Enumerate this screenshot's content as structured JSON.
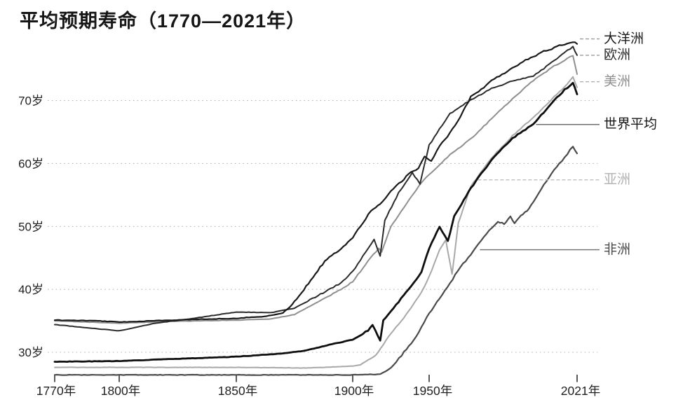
{
  "title": "平均预期寿命（1770—2021年）",
  "colors": {
    "background": "#ffffff",
    "grid": "#b5b5b5",
    "tick": "#2e2e2e",
    "axis_text": "#1f1f1f"
  },
  "chart_data": {
    "type": "line",
    "title": "平均预期寿命（1770—2021年）",
    "xlabel": "",
    "ylabel": "",
    "x_axis": {
      "ticks": [
        1770,
        1800,
        1850,
        1900,
        1950,
        2021
      ],
      "tick_labels": [
        "1770年",
        "1800年",
        "1850年",
        "1900年",
        "1950年",
        "2021年"
      ]
    },
    "y_axis": {
      "ticks": [
        30,
        40,
        50,
        60,
        70
      ],
      "tick_labels": [
        "30岁",
        "40岁",
        "50岁",
        "60岁",
        "70岁"
      ],
      "range": [
        26,
        80
      ]
    },
    "grid": "horizontal-dotted",
    "legend_position": "right-of-lines",
    "series": [
      {
        "name": "大洋洲",
        "color": "#1a1a1a",
        "points": [
          [
            1770,
            35.1
          ],
          [
            1790,
            35.0
          ],
          [
            1800,
            34.8
          ],
          [
            1815,
            35.0
          ],
          [
            1830,
            35.2
          ],
          [
            1850,
            35.4
          ],
          [
            1862,
            35.7
          ],
          [
            1870,
            36.2
          ],
          [
            1875,
            38.0
          ],
          [
            1880,
            40.5
          ],
          [
            1888,
            44.5
          ],
          [
            1895,
            46.5
          ],
          [
            1900,
            48.3
          ],
          [
            1905,
            50.0
          ],
          [
            1912,
            52.5
          ],
          [
            1918,
            53.5
          ],
          [
            1925,
            55.5
          ],
          [
            1932,
            57.2
          ],
          [
            1938,
            58.6
          ],
          [
            1943,
            59.2
          ],
          [
            1947,
            61.2
          ],
          [
            1951,
            60.4
          ],
          [
            1955,
            62.8
          ],
          [
            1960,
            64.8
          ],
          [
            1965,
            67.5
          ],
          [
            1970,
            70.6
          ],
          [
            1975,
            71.8
          ],
          [
            1980,
            73.2
          ],
          [
            1985,
            74.2
          ],
          [
            1990,
            75.2
          ],
          [
            1995,
            76.2
          ],
          [
            2000,
            77.0
          ],
          [
            2005,
            77.8
          ],
          [
            2010,
            78.4
          ],
          [
            2015,
            79.0
          ],
          [
            2019,
            79.4
          ],
          [
            2021,
            79.0
          ]
        ]
      },
      {
        "name": "欧洲",
        "color": "#2b2b2b",
        "points": [
          [
            1770,
            34.4
          ],
          [
            1785,
            33.9
          ],
          [
            1800,
            33.4
          ],
          [
            1815,
            34.6
          ],
          [
            1830,
            35.3
          ],
          [
            1850,
            36.4
          ],
          [
            1865,
            36.3
          ],
          [
            1875,
            37.0
          ],
          [
            1885,
            39.0
          ],
          [
            1895,
            41.0
          ],
          [
            1900,
            42.8
          ],
          [
            1910,
            46.5
          ],
          [
            1914,
            48.0
          ],
          [
            1918,
            45.2
          ],
          [
            1921,
            51.0
          ],
          [
            1930,
            55.3
          ],
          [
            1939,
            58.5
          ],
          [
            1944,
            56.8
          ],
          [
            1950,
            62.9
          ],
          [
            1955,
            65.5
          ],
          [
            1960,
            67.9
          ],
          [
            1970,
            70.1
          ],
          [
            1980,
            71.9
          ],
          [
            1990,
            73.1
          ],
          [
            2000,
            73.9
          ],
          [
            2005,
            75.1
          ],
          [
            2010,
            76.4
          ],
          [
            2015,
            77.6
          ],
          [
            2019,
            78.6
          ],
          [
            2021,
            77.2
          ]
        ]
      },
      {
        "name": "美洲",
        "color": "#8f8f8f",
        "points": [
          [
            1770,
            35.0
          ],
          [
            1800,
            34.6
          ],
          [
            1820,
            34.9
          ],
          [
            1850,
            35.1
          ],
          [
            1865,
            35.3
          ],
          [
            1875,
            36.0
          ],
          [
            1885,
            38.0
          ],
          [
            1895,
            40.0
          ],
          [
            1900,
            41.2
          ],
          [
            1910,
            44.5
          ],
          [
            1917,
            46.5
          ],
          [
            1919,
            46.0
          ],
          [
            1925,
            50.0
          ],
          [
            1935,
            53.5
          ],
          [
            1945,
            57.0
          ],
          [
            1950,
            58.2
          ],
          [
            1960,
            61.4
          ],
          [
            1970,
            63.9
          ],
          [
            1980,
            67.1
          ],
          [
            1990,
            70.3
          ],
          [
            2000,
            73.2
          ],
          [
            2010,
            75.5
          ],
          [
            2015,
            76.4
          ],
          [
            2019,
            77.2
          ],
          [
            2021,
            74.2
          ]
        ]
      },
      {
        "name": "世界平均",
        "color": "#0f0f0f",
        "points": [
          [
            1770,
            28.5
          ],
          [
            1800,
            28.6
          ],
          [
            1820,
            28.9
          ],
          [
            1850,
            29.3
          ],
          [
            1870,
            29.8
          ],
          [
            1880,
            30.3
          ],
          [
            1890,
            31.2
          ],
          [
            1900,
            32.0
          ],
          [
            1910,
            33.5
          ],
          [
            1913,
            34.3
          ],
          [
            1918,
            31.8
          ],
          [
            1920,
            35.0
          ],
          [
            1930,
            38.0
          ],
          [
            1940,
            41.0
          ],
          [
            1945,
            42.8
          ],
          [
            1950,
            46.5
          ],
          [
            1955,
            50.0
          ],
          [
            1959,
            47.6
          ],
          [
            1962,
            51.6
          ],
          [
            1970,
            56.1
          ],
          [
            1980,
            60.6
          ],
          [
            1990,
            64.0
          ],
          [
            2000,
            66.3
          ],
          [
            2010,
            70.0
          ],
          [
            2015,
            71.7
          ],
          [
            2019,
            72.8
          ],
          [
            2021,
            71.0
          ]
        ]
      },
      {
        "name": "亚洲",
        "color": "#a8a8a8",
        "points": [
          [
            1770,
            27.6
          ],
          [
            1800,
            27.6
          ],
          [
            1850,
            27.6
          ],
          [
            1880,
            27.5
          ],
          [
            1900,
            27.8
          ],
          [
            1905,
            28.0
          ],
          [
            1915,
            29.5
          ],
          [
            1925,
            33.0
          ],
          [
            1935,
            36.0
          ],
          [
            1945,
            39.5
          ],
          [
            1950,
            42.0
          ],
          [
            1955,
            46.3
          ],
          [
            1958,
            47.8
          ],
          [
            1961,
            42.4
          ],
          [
            1964,
            50.5
          ],
          [
            1970,
            56.4
          ],
          [
            1980,
            60.9
          ],
          [
            1990,
            64.4
          ],
          [
            2000,
            67.3
          ],
          [
            2010,
            70.6
          ],
          [
            2015,
            72.2
          ],
          [
            2019,
            73.7
          ],
          [
            2021,
            72.1
          ]
        ]
      },
      {
        "name": "非洲",
        "color": "#4a4a4a",
        "points": [
          [
            1770,
            26.4
          ],
          [
            1850,
            26.4
          ],
          [
            1900,
            26.4
          ],
          [
            1918,
            26.5
          ],
          [
            1925,
            27.5
          ],
          [
            1932,
            29.5
          ],
          [
            1940,
            32.0
          ],
          [
            1945,
            34.0
          ],
          [
            1950,
            36.2
          ],
          [
            1955,
            38.5
          ],
          [
            1960,
            41.0
          ],
          [
            1965,
            43.5
          ],
          [
            1970,
            45.6
          ],
          [
            1975,
            47.7
          ],
          [
            1980,
            49.8
          ],
          [
            1983,
            50.8
          ],
          [
            1986,
            50.4
          ],
          [
            1989,
            51.5
          ],
          [
            1991,
            50.6
          ],
          [
            1994,
            51.8
          ],
          [
            1997,
            52.4
          ],
          [
            2000,
            54.0
          ],
          [
            2005,
            56.6
          ],
          [
            2010,
            59.0
          ],
          [
            2015,
            61.0
          ],
          [
            2019,
            62.7
          ],
          [
            2021,
            61.6
          ]
        ]
      }
    ],
    "legend": [
      {
        "label": "大洋洲",
        "color": "#1a1a1a",
        "label_at_value": 79.8,
        "leader_from_year": 2021,
        "leader_style": "dashed",
        "leader_color": "#9a9a9a"
      },
      {
        "label": "欧洲",
        "color": "#2b2b2b",
        "label_at_value": 77.2,
        "leader_from_year": 2021,
        "leader_style": "dashed",
        "leader_color": "#9a9a9a"
      },
      {
        "label": "美洲",
        "color": "#8f8f8f",
        "label_at_value": 73.0,
        "leader_from_year": 2021,
        "leader_style": "dashed",
        "leader_color": "#b0b0b0"
      },
      {
        "label": "世界平均",
        "color": "#141414",
        "label_at_value": 66.2,
        "leader_from_year": 2000,
        "leader_style": "solid",
        "leader_color": "#6f6f6f"
      },
      {
        "label": "亚洲",
        "color": "#b2b2b2",
        "label_at_value": 57.4,
        "leader_from_year": 1972,
        "leader_style": "dashed",
        "leader_color": "#bdbdbd"
      },
      {
        "label": "非洲",
        "color": "#4a4a4a",
        "label_at_value": 46.3,
        "leader_from_year": 1973,
        "leader_style": "solid",
        "leader_color": "#6f6f6f"
      }
    ]
  }
}
